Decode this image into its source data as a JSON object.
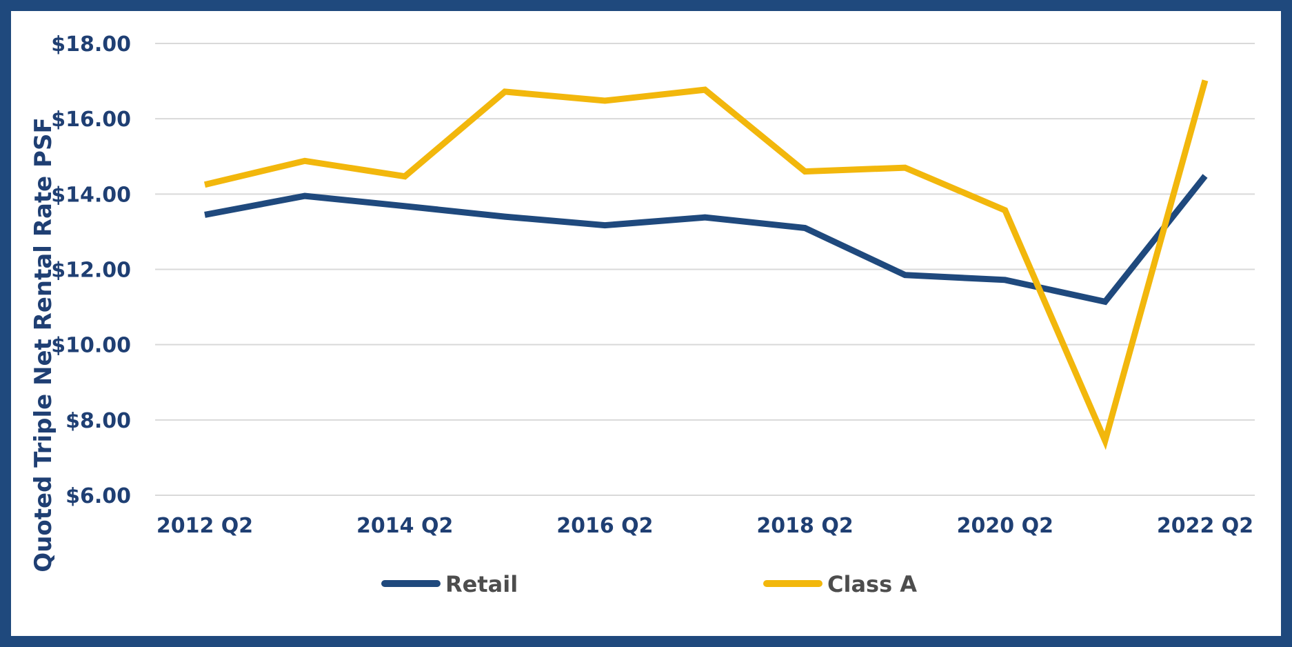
{
  "chart_data": {
    "type": "line",
    "title": "",
    "xlabel": "",
    "ylabel": "Quoted Triple Net Rental Rate PSF",
    "ylim": [
      6,
      18
    ],
    "yticks": [
      6,
      8,
      10,
      12,
      14,
      16,
      18
    ],
    "ytick_labels": [
      "$6.00",
      "$8.00",
      "$10.00",
      "$12.00",
      "$14.00",
      "$16.00",
      "$18.00"
    ],
    "categories": [
      "2012 Q2",
      "2013 Q2",
      "2014 Q2",
      "2015 Q2",
      "2016 Q2",
      "2017 Q2",
      "2018 Q2",
      "2019 Q2",
      "2020 Q2",
      "2021 Q2",
      "2022 Q2"
    ],
    "xtick_labels": [
      "2012 Q2",
      "2014 Q2",
      "2016 Q2",
      "2018 Q2",
      "2020 Q2",
      "2022 Q2"
    ],
    "xtick_indices": [
      0,
      2,
      4,
      6,
      8,
      10
    ],
    "grid": true,
    "legend_position": "bottom",
    "series": [
      {
        "name": "Retail",
        "color": "#1f497d",
        "values": [
          13.45,
          13.95,
          13.68,
          13.4,
          13.17,
          13.38,
          13.1,
          11.85,
          11.72,
          11.14,
          14.48
        ]
      },
      {
        "name": "Class A",
        "color": "#f2b70c",
        "values": [
          14.25,
          14.88,
          14.47,
          16.72,
          16.48,
          16.77,
          14.6,
          14.7,
          13.57,
          7.45,
          17.02
        ]
      }
    ]
  }
}
